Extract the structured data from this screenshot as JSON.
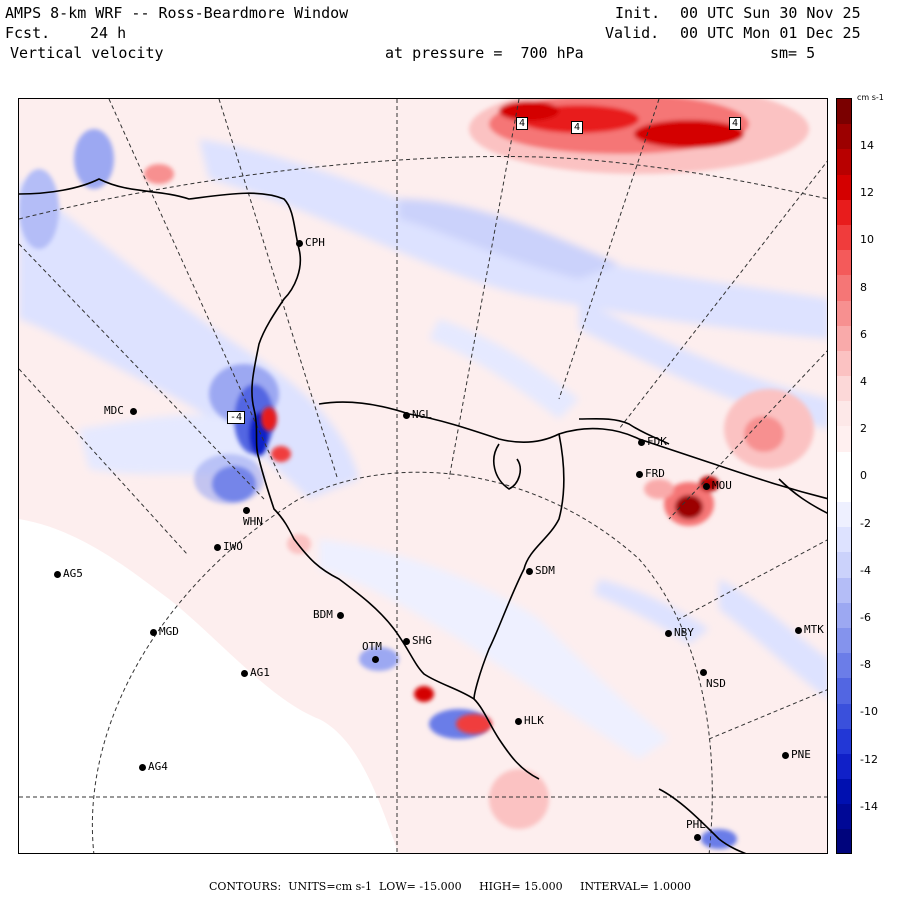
{
  "header": {
    "model_title": "AMPS 8-km WRF -- Ross-Beardmore Window",
    "init_label": "Init.",
    "init_value": "00 UTC Sun 30 Nov 25",
    "fcst_label": "Fcst.",
    "fcst_value": "24 h",
    "valid_label": "Valid.",
    "valid_value": "00 UTC Mon 01 Dec 25",
    "field_name": "Vertical velocity",
    "pressure_text": "at pressure =  700 hPa",
    "smoothing_text": "sm= 5"
  },
  "stations": [
    {
      "id": "CPH"
    },
    {
      "id": "MDC"
    },
    {
      "id": "NGL"
    },
    {
      "id": "FDK"
    },
    {
      "id": "FRD"
    },
    {
      "id": "MOU"
    },
    {
      "id": "WHN"
    },
    {
      "id": "IWO"
    },
    {
      "id": "AG5"
    },
    {
      "id": "SDM"
    },
    {
      "id": "BDM"
    },
    {
      "id": "MGD"
    },
    {
      "id": "OTM"
    },
    {
      "id": "SHG"
    },
    {
      "id": "NBY"
    },
    {
      "id": "MTK"
    },
    {
      "id": "AG1"
    },
    {
      "id": "NSD"
    },
    {
      "id": "HLK"
    },
    {
      "id": "AG4"
    },
    {
      "id": "PNE"
    },
    {
      "id": "PHL"
    }
  ],
  "contour_labels": [
    "4",
    "4",
    "4",
    "-4"
  ],
  "colorbar": {
    "units_label": "cm s-1",
    "ticks": [
      "14",
      "12",
      "10",
      "8",
      "6",
      "4",
      "2",
      "0",
      "-2",
      "-4",
      "-6",
      "-8",
      "-10",
      "-12",
      "-14"
    ],
    "colors_top_to_bottom": [
      "#7a0000",
      "#9c0000",
      "#b80000",
      "#d40000",
      "#e81c1c",
      "#f03c3c",
      "#f45a5a",
      "#f57676",
      "#f79090",
      "#f9aaaa",
      "#fbc2c2",
      "#fcd8d8",
      "#fde8e8",
      "#fff0f0",
      "#ffffff",
      "#ffffff",
      "#eef0ff",
      "#dde2ff",
      "#cbd2fb",
      "#b4bdf7",
      "#9ca8f2",
      "#8493ed",
      "#6b7de8",
      "#5266e2",
      "#3a50dc",
      "#2237d6",
      "#1020c8",
      "#0010b0",
      "#000896",
      "#00047c"
    ]
  },
  "footer": {
    "contours_label": "CONTOURS:",
    "units_label": "UNITS=cm s-1",
    "low_label": "LOW=",
    "low_value": "-15.000",
    "high_label": "HIGH=",
    "high_value": "15.000",
    "interval_label": "INTERVAL=",
    "interval_value": "1.0000"
  }
}
